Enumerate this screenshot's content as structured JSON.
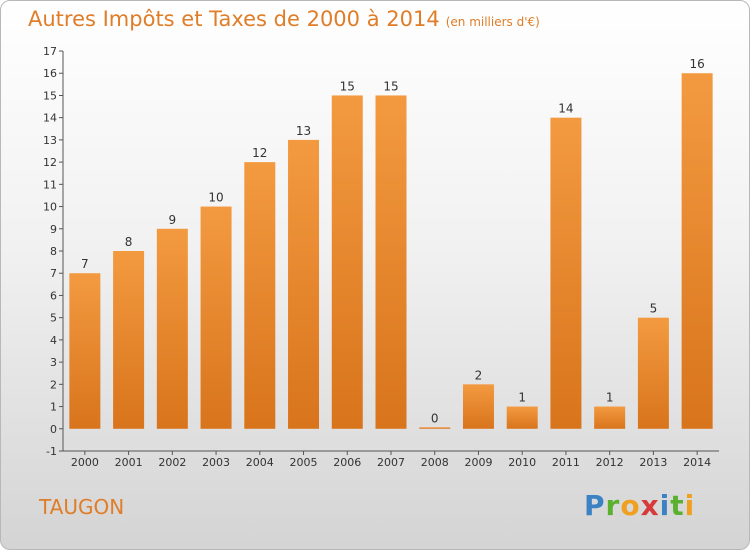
{
  "chart_data": {
    "type": "bar",
    "title": "Autres Impôts et Taxes de 2000 à 2014",
    "subtitle": "(en milliers d'€)",
    "categories": [
      "2000",
      "2001",
      "2002",
      "2003",
      "2004",
      "2005",
      "2006",
      "2007",
      "2008",
      "2009",
      "2010",
      "2011",
      "2012",
      "2013",
      "2014"
    ],
    "values": [
      7,
      8,
      9,
      10,
      12,
      13,
      15,
      15,
      0,
      2,
      1,
      14,
      1,
      5,
      16
    ],
    "ylim": [
      -1,
      17
    ],
    "yticks": [
      "-1",
      "0",
      "1",
      "2",
      "3",
      "4",
      "5",
      "6",
      "7",
      "8",
      "9",
      "10",
      "11",
      "12",
      "13",
      "14",
      "15",
      "16",
      "17"
    ],
    "grid": false,
    "bar_color": "#f39a40",
    "bar_color_dark": "#d8741c"
  },
  "footer": {
    "commune": "TAUGON",
    "logo": {
      "p": "P",
      "r": "r",
      "o": "o",
      "x": "x",
      "i": "i",
      "t": "t",
      "i2": "i"
    }
  }
}
